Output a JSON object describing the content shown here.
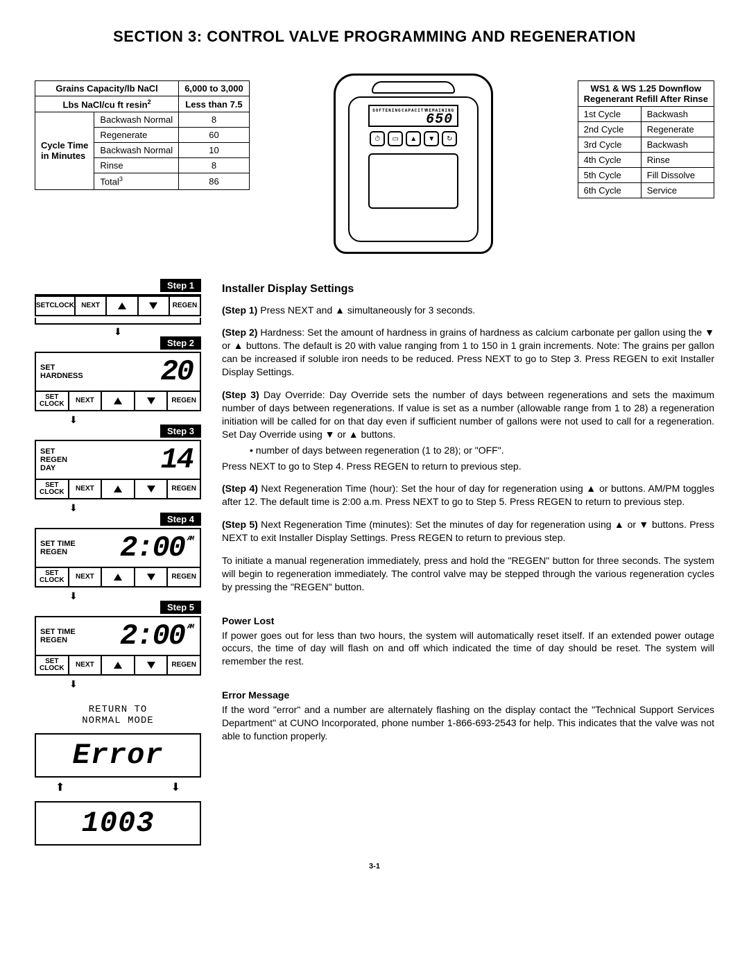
{
  "title": "SECTION 3: CONTROL VALVE PROGRAMMING AND REGENERATION",
  "page_number": "3-1",
  "spec_table": {
    "r1c1": "Grains Capacity/lb NaCl",
    "r1c2": "6,000 to 3,000",
    "r2c1": "Lbs NaCl/cu ft resin",
    "r2sup": "2",
    "r2c2": "Less than 7.5",
    "rowgroup_label_1": "Cycle Time",
    "rowgroup_label_2": "in Minutes",
    "rows": [
      {
        "name": "Backwash Normal",
        "val": "8"
      },
      {
        "name": "Regenerate",
        "val": "60"
      },
      {
        "name": "Backwash Normal",
        "val": "10"
      },
      {
        "name": "Rinse",
        "val": "8"
      },
      {
        "name": "Total",
        "sup": "3",
        "val": "86"
      }
    ]
  },
  "cycle_table": {
    "header_l1": "WS1 & WS 1.25 Downflow",
    "header_l2": "Regenerant Refill After Rinse",
    "rows": [
      {
        "c": "1st Cycle",
        "n": "Backwash"
      },
      {
        "c": "2nd Cycle",
        "n": "Regenerate"
      },
      {
        "c": "3rd Cycle",
        "n": "Backwash"
      },
      {
        "c": "4th Cycle",
        "n": "Rinse"
      },
      {
        "c": "5th Cycle",
        "n": "Fill Dissolve"
      },
      {
        "c": "6th Cycle",
        "n": "Service"
      }
    ]
  },
  "device": {
    "lcd_value": "650",
    "lcd_softening": "SOFTENING",
    "lcd_capacity": "CAPACITY",
    "lcd_remaining": "REMAINING"
  },
  "btn_labels": {
    "set_clock_l1": "SET",
    "set_clock_l2": "CLOCK",
    "next": "NEXT",
    "regen": "REGEN"
  },
  "steps": [
    {
      "tag": "Step 1",
      "left_l1": "SET",
      "left_l2": "CLOCK",
      "digits": "",
      "ampm": "",
      "show_lcd": false
    },
    {
      "tag": "Step 2",
      "left_l1": "SET",
      "left_l2": "HARDNESS",
      "digits": "20",
      "ampm": ""
    },
    {
      "tag": "Step 3",
      "left_l1": "SET",
      "left_l2": "REGEN",
      "left_l3": "DAY",
      "digits": "14",
      "ampm": ""
    },
    {
      "tag": "Step 4",
      "left_l1": "SET TIME",
      "left_l2": "REGEN",
      "digits": "2:00",
      "ampm": "AM"
    },
    {
      "tag": "Step 5",
      "left_l1": "SET TIME",
      "left_l2": "REGEN",
      "digits": "2:00",
      "ampm": "AM"
    }
  ],
  "return_text_l1": "RETURN TO",
  "return_text_l2": "NORMAL MODE",
  "error_display": "Error",
  "error_code": "1003",
  "installer": {
    "heading": "Installer Display Settings",
    "step1_label": "(Step 1)",
    "step1": " Press NEXT and ▲ simultaneously for 3 seconds.",
    "step2_label": "(Step 2)",
    "step2": " Hardness: Set the amount of hardness in grains of hardness as calcium carbonate per gallon using the ▼ or ▲ buttons.  The default is 20 with value ranging from 1 to 150 in 1 grain increments.  Note: The grains per gallon can be increased if soluble iron needs to be reduced.  Press NEXT to go to Step 3.  Press REGEN to exit Installer Display Settings.",
    "step3_label": "(Step 3)",
    "step3": " Day Override: Day Override sets the number of days between regenerations and sets the maximum number of days between regenerations.  If value is set as a number (allowable range from 1 to 28) a regeneration initiation will be called for on that day even if sufficient number of gallons were not used to call for a regeneration.  Set Day Override using ▼ or ▲ buttons.",
    "step3_bullet": "• number of days between regeneration (1 to 28); or \"OFF\".",
    "step3_after": "Press NEXT to go to Step 4.  Press REGEN to return to previous step.",
    "step4_label": "(Step 4)",
    "step4": " Next Regeneration Time (hour): Set the hour of day for regeneration using ▲ or  buttons.  AM/PM toggles after 12.  The default time is 2:00 a.m. Press NEXT to go to Step 5.  Press REGEN to return to previous step.",
    "step5_label": "(Step 5)",
    "step5": " Next Regeneration Time (minutes): Set the minutes of day for regeneration using ▲ or ▼ buttons.  Press NEXT to exit Installer Display Settings.  Press REGEN to return to previous step.",
    "manual": "To initiate a manual regeneration immediately, press and hold the \"REGEN\" button for three seconds.  The system will begin to regeneration immediately.  The control valve may be stepped through the various regeneration cycles by pressing the \"REGEN\" button.",
    "power_h": "Power Lost",
    "power": "If power goes out for less than two hours, the system will automatically reset itself.  If an extended power outage occurs, the time of day will flash on and off which indicated the time of day should be reset. The system will remember the rest.",
    "error_h": "Error Message",
    "error": "If the word \"error\" and a number are alternately flashing on the display contact the \"Technical Support Services Department\" at CUNO Incorporated, phone number 1-866-693-2543 for help.  This indicates that the valve was not able to function properly."
  }
}
